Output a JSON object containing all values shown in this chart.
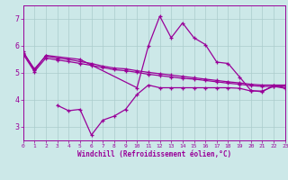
{
  "xlabel": "Windchill (Refroidissement éolien,°C)",
  "xlim": [
    0,
    23
  ],
  "ylim": [
    2.5,
    7.5
  ],
  "yticks": [
    3,
    4,
    5,
    6,
    7
  ],
  "xticks": [
    0,
    1,
    2,
    3,
    4,
    5,
    6,
    7,
    8,
    9,
    10,
    11,
    12,
    13,
    14,
    15,
    16,
    17,
    18,
    19,
    20,
    21,
    22,
    23
  ],
  "bg_color": "#cce8e8",
  "line_color": "#990099",
  "grid_color": "#aacccc",
  "lines": [
    {
      "x": [
        0,
        1,
        2,
        5,
        10,
        11,
        12,
        13,
        14,
        15,
        16,
        17,
        18,
        19,
        20,
        21,
        22,
        23
      ],
      "y": [
        5.8,
        5.1,
        5.65,
        5.5,
        4.45,
        6.0,
        7.1,
        6.3,
        6.85,
        6.3,
        6.05,
        5.4,
        5.35,
        4.85,
        4.35,
        4.3,
        4.55,
        4.45
      ]
    },
    {
      "x": [
        0,
        1,
        2,
        3,
        4,
        5,
        6,
        7,
        8,
        9,
        10,
        11,
        12,
        13,
        14,
        15,
        16,
        17,
        18,
        19,
        20,
        21,
        22,
        23
      ],
      "y": [
        5.75,
        5.15,
        5.62,
        5.55,
        5.5,
        5.42,
        5.35,
        5.25,
        5.18,
        5.15,
        5.08,
        5.02,
        4.97,
        4.92,
        4.87,
        4.82,
        4.77,
        4.72,
        4.67,
        4.63,
        4.58,
        4.55,
        4.55,
        4.55
      ]
    },
    {
      "x": [
        0,
        1,
        2,
        3,
        4,
        5,
        6,
        7,
        8,
        9,
        10,
        11,
        12,
        13,
        14,
        15,
        16,
        17,
        18,
        19,
        20,
        21,
        22,
        23
      ],
      "y": [
        5.7,
        5.05,
        5.55,
        5.48,
        5.42,
        5.35,
        5.28,
        5.2,
        5.12,
        5.08,
        5.02,
        4.95,
        4.9,
        4.85,
        4.8,
        4.77,
        4.72,
        4.67,
        4.62,
        4.58,
        4.53,
        4.5,
        4.5,
        4.52
      ]
    },
    {
      "x": [
        3,
        4,
        5,
        6,
        7,
        8,
        9,
        10,
        11,
        12,
        13,
        14,
        15,
        16,
        17,
        18,
        19,
        20,
        21,
        22,
        23
      ],
      "y": [
        3.8,
        3.6,
        3.65,
        2.7,
        3.25,
        3.4,
        3.65,
        4.2,
        4.55,
        4.45,
        4.45,
        4.45,
        4.45,
        4.45,
        4.45,
        4.45,
        4.43,
        4.33,
        4.33,
        4.5,
        4.43
      ]
    }
  ]
}
